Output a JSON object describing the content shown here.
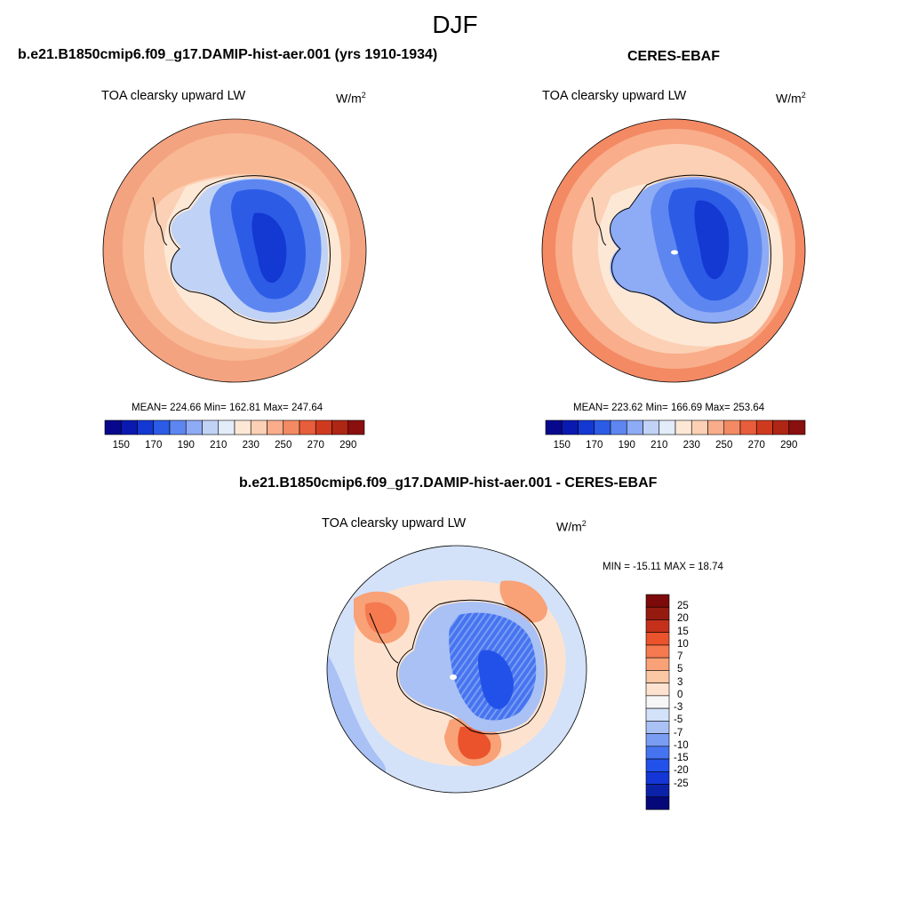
{
  "season": "DJF",
  "colors": {
    "abs_palette": [
      "#08088c",
      "#0a1ab0",
      "#1438d2",
      "#2c5ce6",
      "#5d86f0",
      "#8eabf5",
      "#c0d2f6",
      "#e3ecf9",
      "#fde8d6",
      "#fcd0b4",
      "#f9ad8a",
      "#f38a64",
      "#e85d3b",
      "#cf3a1f",
      "#ae2614",
      "#8a0f0f"
    ],
    "diff_palette": [
      "#050878",
      "#0b22a8",
      "#1436d6",
      "#2251ea",
      "#4674f0",
      "#7a9df4",
      "#a9c1f4",
      "#d3e2f8",
      "#f6f6f6",
      "#fde3cf",
      "#fcc7a4",
      "#f9a177",
      "#f57a4f",
      "#ea532c",
      "#c5301a",
      "#951b10",
      "#7c0a0a"
    ],
    "ocean_outer": "#f4a380",
    "antarctica_core": "#2048d8",
    "land_edge": "#d5e4f9"
  },
  "panels": [
    {
      "title": "b.e21.B1850cmip6.f09_g17.DAMIP-hist-aer.001 (yrs 1910-1934)",
      "subtitle": "TOA clearsky upward LW",
      "units_base": "W/m",
      "units_exp": "2",
      "stats_text": "MEAN= 224.66  Min= 162.81  Max= 247.64",
      "colorbar_ticks": [
        "150",
        "170",
        "190",
        "210",
        "230",
        "250",
        "270",
        "290"
      ]
    },
    {
      "title": "CERES-EBAF",
      "subtitle": "TOA clearsky upward LW",
      "units_base": "W/m",
      "units_exp": "2",
      "stats_text": "MEAN= 223.62  Min= 166.69  Max= 253.64",
      "colorbar_ticks": [
        "150",
        "170",
        "190",
        "210",
        "230",
        "250",
        "270",
        "290"
      ]
    }
  ],
  "diff_panel": {
    "title": "b.e21.B1850cmip6.f09_g17.DAMIP-hist-aer.001 - CERES-EBAF",
    "subtitle": "TOA clearsky upward LW",
    "units_base": "W/m",
    "units_exp": "2",
    "stats_text": "MIN = -15.11 MAX =  18.74",
    "colorbar_ticks": [
      "25",
      "20",
      "15",
      "10",
      "7",
      "5",
      "3",
      "0",
      "-3",
      "-5",
      "-7",
      "-10",
      "-15",
      "-20",
      "-25"
    ]
  },
  "chart_data": [
    {
      "type": "heatmap",
      "projection": "south-polar-stereographic",
      "title": "b.e21.B1850cmip6.f09_g17.DAMIP-hist-aer.001 (yrs 1910-1934)",
      "variable": "TOA clearsky upward LW",
      "units": "W/m2",
      "mean": 224.66,
      "min": 162.81,
      "max": 247.64,
      "levels": [
        150,
        160,
        170,
        180,
        190,
        200,
        210,
        220,
        230,
        240,
        250,
        260,
        270,
        280,
        290
      ],
      "tick_labels": [
        150,
        170,
        190,
        210,
        230,
        250,
        270,
        290
      ]
    },
    {
      "type": "heatmap",
      "projection": "south-polar-stereographic",
      "title": "CERES-EBAF",
      "variable": "TOA clearsky upward LW",
      "units": "W/m2",
      "mean": 223.62,
      "min": 166.69,
      "max": 253.64,
      "levels": [
        150,
        160,
        170,
        180,
        190,
        200,
        210,
        220,
        230,
        240,
        250,
        260,
        270,
        280,
        290
      ],
      "tick_labels": [
        150,
        170,
        190,
        210,
        230,
        250,
        270,
        290
      ]
    },
    {
      "type": "heatmap",
      "projection": "south-polar-stereographic",
      "title": "b.e21.B1850cmip6.f09_g17.DAMIP-hist-aer.001 - CERES-EBAF",
      "variable": "TOA clearsky upward LW",
      "units": "W/m2",
      "min": -15.11,
      "max": 18.74,
      "levels": [
        -25,
        -20,
        -15,
        -10,
        -7,
        -5,
        -3,
        0,
        3,
        5,
        7,
        10,
        15,
        20,
        25
      ],
      "tick_labels": [
        25,
        20,
        15,
        10,
        7,
        5,
        3,
        0,
        -3,
        -5,
        -7,
        -10,
        -15,
        -20,
        -25
      ]
    }
  ]
}
